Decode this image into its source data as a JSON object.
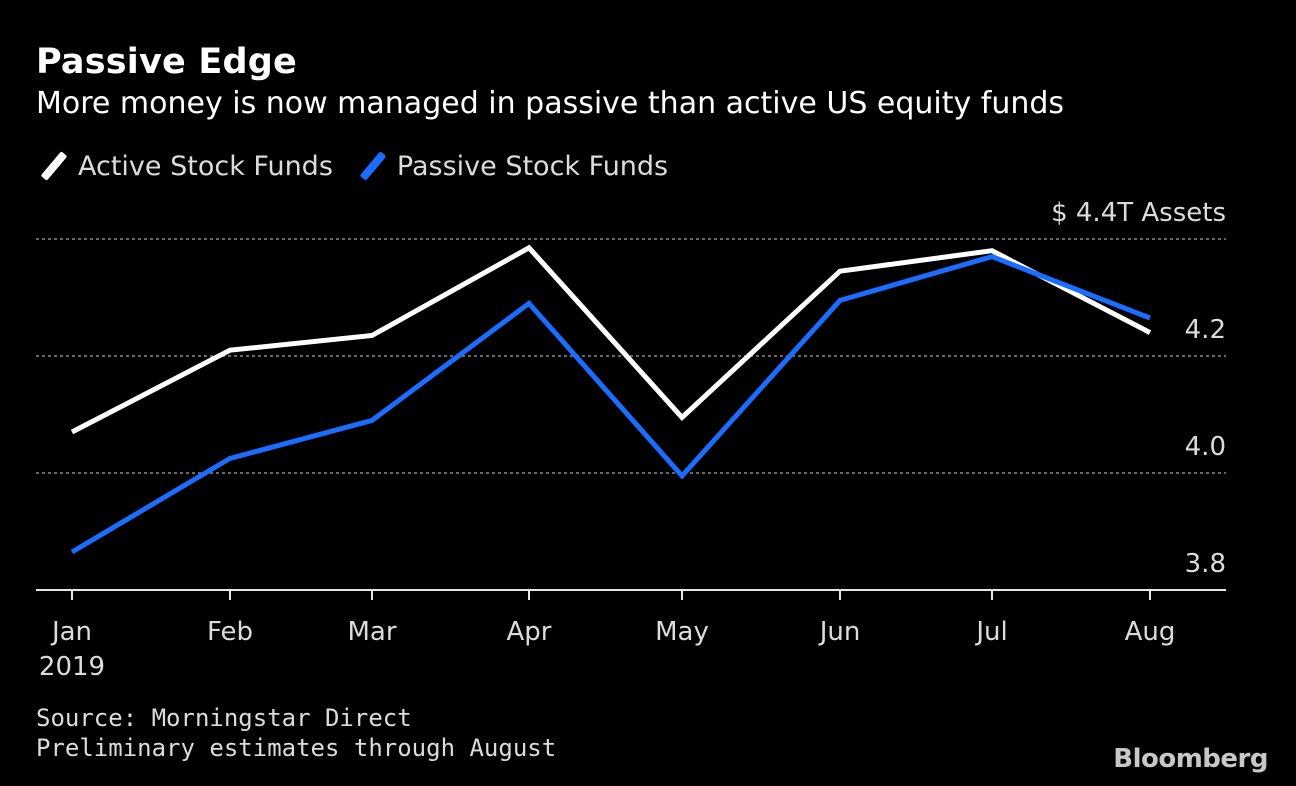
{
  "chart_data": {
    "type": "line",
    "title": "Passive Edge",
    "subtitle": "More money is now managed in passive than active US equity funds",
    "categories": [
      "Jan",
      "Feb",
      "Mar",
      "Apr",
      "May",
      "Jun",
      "Jul",
      "Aug"
    ],
    "year_label": "2019",
    "series": [
      {
        "name": "Active Stock Funds",
        "color": "#ffffff",
        "values": [
          4.07,
          4.21,
          4.235,
          4.385,
          4.095,
          4.345,
          4.38,
          4.24
        ]
      },
      {
        "name": "Passive Stock Funds",
        "color": "#1a6dff",
        "values": [
          3.865,
          4.025,
          4.09,
          4.29,
          3.995,
          4.295,
          4.37,
          4.265
        ]
      }
    ],
    "y_axis": {
      "ylim": [
        3.8,
        4.4
      ],
      "ticks": [
        3.8,
        4.0,
        4.2,
        4.4
      ],
      "tick_labels": [
        "3.8",
        "4.0",
        "4.2",
        "$ 4.4T Assets"
      ],
      "position": "right"
    },
    "grid": true
  },
  "footer": {
    "source": "Source: Morningstar Direct",
    "note": "Preliminary estimates through August",
    "brand": "Bloomberg"
  }
}
